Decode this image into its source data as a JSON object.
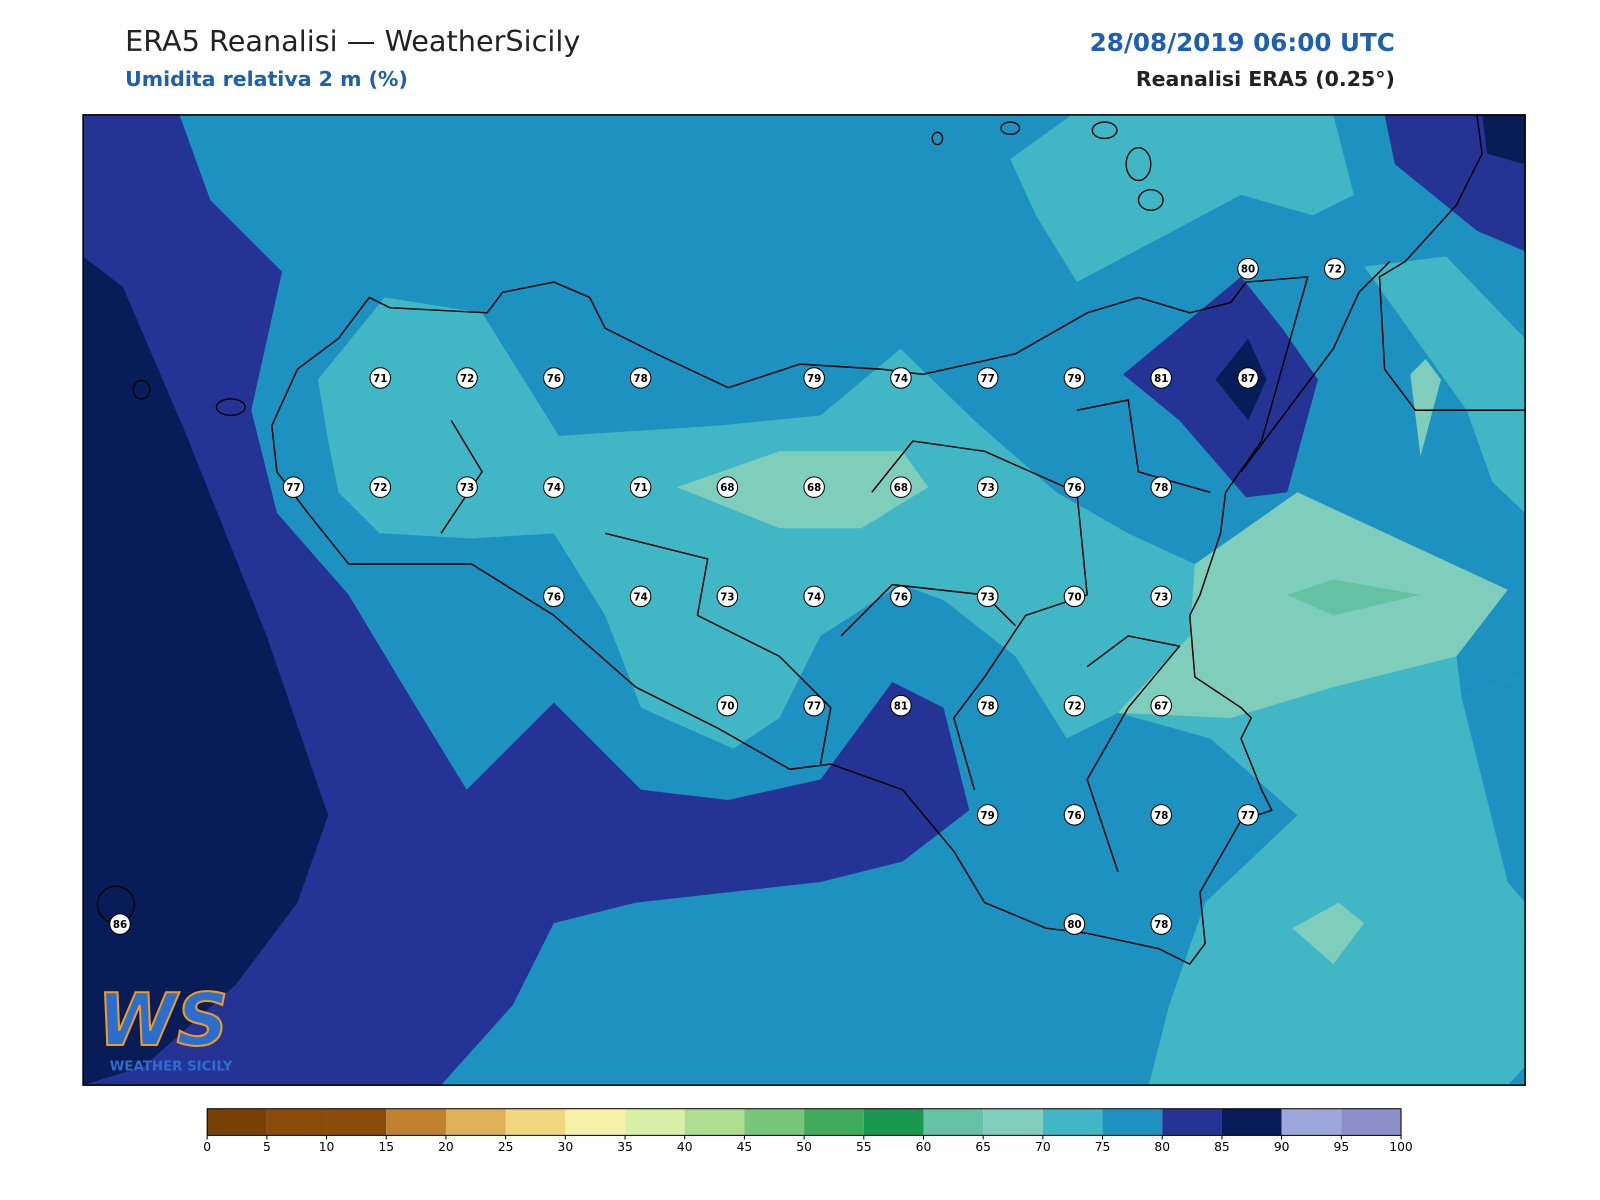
{
  "header": {
    "title": "ERA5 Reanalisi — WeatherSicily",
    "subtitle": "Umidita relativa 2 m (%)",
    "datetime": "28/08/2019 06:00 UTC",
    "source": "Reanalisi ERA5 (0.25°)"
  },
  "stations": {
    "rows": [
      [
        null,
        null,
        null,
        null,
        null,
        null,
        null,
        null,
        null,
        null,
        null,
        null,
        null,
        80,
        72
      ],
      [
        null,
        null,
        null,
        71,
        72,
        76,
        78,
        null,
        79,
        74,
        77,
        79,
        81,
        87,
        null
      ],
      [
        null,
        null,
        77,
        72,
        73,
        74,
        71,
        68,
        68,
        68,
        73,
        76,
        78,
        null,
        null
      ],
      [
        null,
        null,
        null,
        null,
        null,
        76,
        74,
        73,
        74,
        76,
        73,
        70,
        73,
        null,
        null
      ],
      [
        null,
        null,
        null,
        null,
        null,
        null,
        null,
        70,
        77,
        81,
        78,
        72,
        67,
        null,
        null
      ],
      [
        null,
        null,
        null,
        null,
        null,
        null,
        null,
        null,
        null,
        null,
        79,
        76,
        78,
        77,
        null
      ],
      [
        86,
        null,
        null,
        null,
        null,
        null,
        null,
        null,
        null,
        null,
        null,
        80,
        78,
        null,
        null
      ]
    ]
  },
  "colorbar": {
    "ticks": [
      0,
      5,
      10,
      15,
      20,
      25,
      30,
      35,
      40,
      45,
      50,
      55,
      60,
      65,
      70,
      75,
      80,
      85,
      90,
      95,
      100
    ],
    "colors": [
      "#774106",
      "#8a4b0b",
      "#8a4b0b",
      "#bf812d",
      "#dfb05a",
      "#f0d67f",
      "#f6f3a8",
      "#d9efa6",
      "#addd8e",
      "#78c679",
      "#41ab5d",
      "#1a9850",
      "#66c2a4",
      "#7fcdbb",
      "#41b6c4",
      "#1d91c0",
      "#253494",
      "#081d58",
      "#9ea7dc",
      "#8c8fc8"
    ]
  },
  "logo": {
    "mark": "WS",
    "name": "WEATHER SICILY"
  }
}
